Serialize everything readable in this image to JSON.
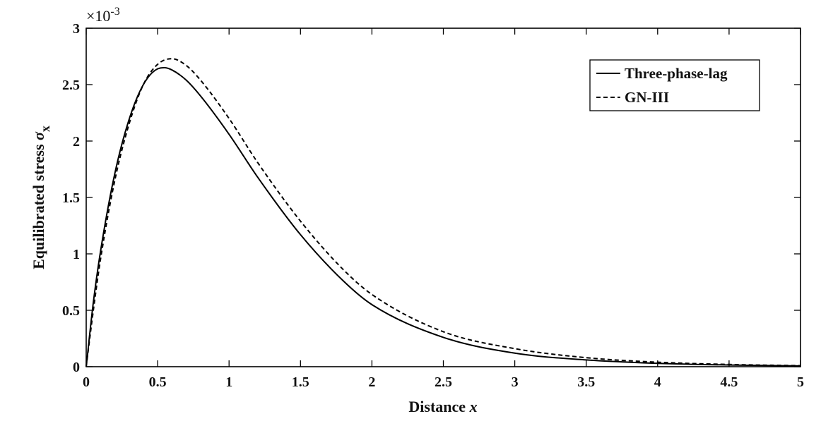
{
  "chart_data": {
    "type": "line",
    "xlabel_text": "Distance",
    "xlabel_var": "x",
    "ylabel_text": "Equilibrated stress",
    "ylabel_sym": "σ",
    "ylabel_sub": "x",
    "y_multiplier_base": "×10",
    "y_multiplier_exp": "-3",
    "xlim": [
      0,
      5
    ],
    "ylim": [
      0,
      0.003
    ],
    "x_ticks": [
      "0",
      "0.5",
      "1",
      "1.5",
      "2",
      "2.5",
      "3",
      "3.5",
      "4",
      "4.5",
      "5"
    ],
    "y_ticks": [
      "0",
      "0.5",
      "1",
      "1.5",
      "2",
      "2.5",
      "3"
    ],
    "legend_position": "top-right",
    "grid": false,
    "series": [
      {
        "name": "Three-phase-lag",
        "style": "solid",
        "color": "#000000",
        "x": [
          0,
          0.05,
          0.1,
          0.2,
          0.3,
          0.4,
          0.5,
          0.55,
          0.6,
          0.7,
          0.8,
          1.0,
          1.2,
          1.5,
          1.8,
          2.0,
          2.5,
          3.0,
          3.5,
          4.0,
          4.5,
          5.0
        ],
        "y": [
          0,
          0.00057,
          0.00102,
          0.00171,
          0.00219,
          0.0025,
          0.00264,
          0.00265,
          0.00263,
          0.00254,
          0.0024,
          0.00206,
          0.00168,
          0.00117,
          0.00076,
          0.00055,
          0.00026,
          0.00012,
          6e-05,
          3e-05,
          1.5e-05,
          7e-06
        ]
      },
      {
        "name": "GN-III",
        "style": "dashed",
        "color": "#000000",
        "x": [
          0,
          0.05,
          0.1,
          0.2,
          0.3,
          0.4,
          0.5,
          0.6,
          0.7,
          0.8,
          1.0,
          1.2,
          1.5,
          1.8,
          2.0,
          2.5,
          3.0,
          3.5,
          4.0,
          4.5,
          5.0
        ],
        "y": [
          0,
          0.0005,
          0.00095,
          0.00165,
          0.00215,
          0.0025,
          0.00268,
          0.00273,
          0.00267,
          0.00254,
          0.0022,
          0.00181,
          0.00129,
          0.00086,
          0.00064,
          0.00031,
          0.00016,
          8e-05,
          4e-05,
          2e-05,
          9e-06
        ]
      }
    ]
  }
}
